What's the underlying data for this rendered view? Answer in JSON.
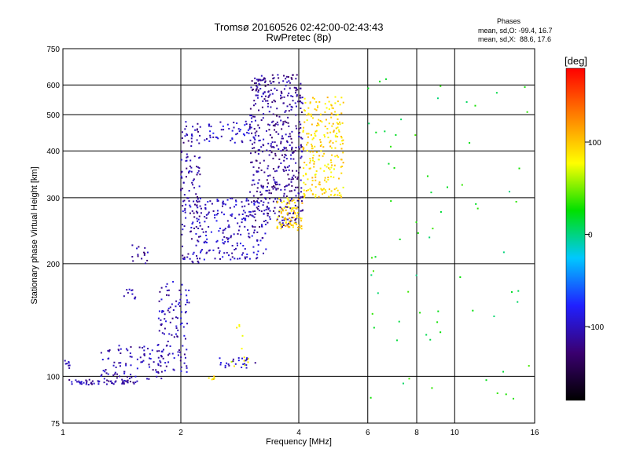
{
  "chart_data": {
    "type": "scatter",
    "title": "Tromsø 20160526 02:42:00-02:43:43",
    "subtitle": "RwPretec (8p)",
    "xlabel": "Frequency [MHz]",
    "ylabel": "Stationary phase Virtual Height [km]",
    "x_scale": "log",
    "y_scale": "log",
    "xlim": [
      1,
      16
    ],
    "ylim": [
      75,
      750
    ],
    "x_ticks": [
      1,
      2,
      4,
      6,
      8,
      10,
      16
    ],
    "y_ticks": [
      75,
      100,
      200,
      300,
      400,
      500,
      600,
      750
    ],
    "grid": true,
    "colorbar": {
      "label": "[deg]",
      "range": [
        -180,
        180
      ],
      "ticks": [
        100,
        0,
        -100
      ],
      "colors": [
        "#000000",
        "#3a0070",
        "#2020ff",
        "#00c8ff",
        "#00e000",
        "#ffff00",
        "#ff8000",
        "#ff0000"
      ]
    },
    "phases_text": {
      "title": "Phases",
      "o_line": "mean, sd,O: -99.4, 16.7",
      "x_line": "mean, sd,X:  88.6, 17.6"
    },
    "clusters": [
      {
        "f": [
          1.0,
          1.55
        ],
        "h": [
          95,
          98
        ],
        "n": 60,
        "phase": -110
      },
      {
        "f": [
          1.0,
          1.05
        ],
        "h": [
          105,
          112
        ],
        "n": 8,
        "phase": -100
      },
      {
        "f": [
          1.25,
          1.8
        ],
        "h": [
          98,
          122
        ],
        "n": 90,
        "phase": -105
      },
      {
        "f": [
          1.5,
          1.65
        ],
        "h": [
          200,
          225
        ],
        "n": 15,
        "phase": -110
      },
      {
        "f": [
          1.43,
          1.55
        ],
        "h": [
          160,
          172
        ],
        "n": 10,
        "phase": -100
      },
      {
        "f": [
          1.75,
          2.1
        ],
        "h": [
          102,
          180
        ],
        "n": 110,
        "phase": -105
      },
      {
        "f": [
          2.0,
          2.25
        ],
        "h": [
          200,
          480
        ],
        "n": 140,
        "phase": -108
      },
      {
        "f": [
          2.2,
          3.3
        ],
        "h": [
          205,
          300
        ],
        "n": 200,
        "phase": -100
      },
      {
        "f": [
          2.3,
          3.1
        ],
        "h": [
          420,
          480
        ],
        "n": 50,
        "phase": -95
      },
      {
        "f": [
          2.5,
          3.1
        ],
        "h": [
          105,
          112
        ],
        "n": 25,
        "phase": -100
      },
      {
        "f": [
          3.0,
          4.1
        ],
        "h": [
          250,
          640
        ],
        "n": 500,
        "phase": -115
      },
      {
        "f": [
          3.5,
          4.1
        ],
        "h": [
          245,
          300
        ],
        "n": 80,
        "phase": 95
      },
      {
        "f": [
          4.1,
          5.2
        ],
        "h": [
          300,
          560
        ],
        "n": 240,
        "phase": 92
      },
      {
        "f": [
          2.6,
          3.0
        ],
        "h": [
          105,
          140
        ],
        "n": 12,
        "phase": 80
      },
      {
        "f": [
          2.35,
          2.45
        ],
        "h": [
          98,
          101
        ],
        "n": 6,
        "phase": 90
      },
      {
        "f": [
          6.0,
          15.5
        ],
        "h": [
          80,
          650
        ],
        "n": 70,
        "phase": 20
      }
    ]
  }
}
